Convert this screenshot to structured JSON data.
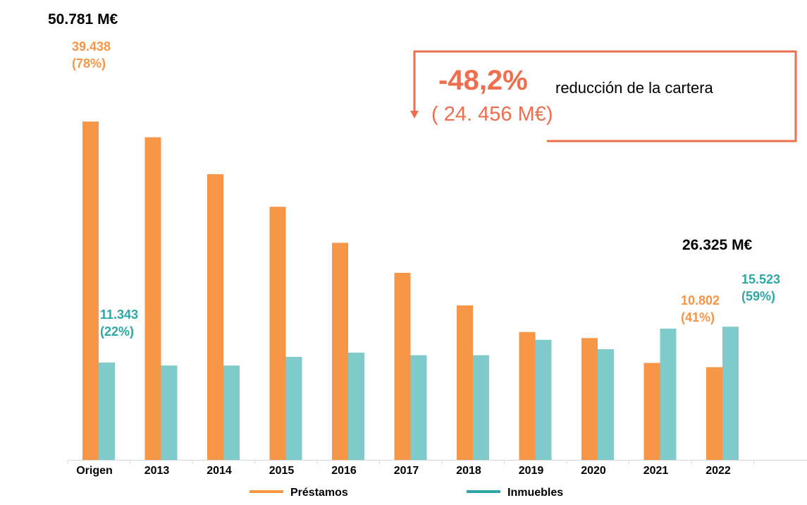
{
  "chart_data": {
    "type": "bar",
    "categories": [
      "Origen",
      "2013",
      "2014",
      "2015",
      "2016",
      "2017",
      "2018",
      "2019",
      "2020",
      "2021",
      "2022"
    ],
    "series": [
      {
        "name": "Préstamos",
        "color": "#f79646",
        "values": [
          39438,
          37600,
          33300,
          29500,
          25300,
          21800,
          18000,
          14900,
          14200,
          11300,
          10802
        ]
      },
      {
        "name": "Inmuebles",
        "color": "#7fcbcb",
        "values": [
          11343,
          11000,
          11000,
          12000,
          12500,
          12200,
          12200,
          14000,
          12900,
          15300,
          15523
        ]
      }
    ],
    "ylim": [
      0,
      49000
    ],
    "grid": false,
    "legend_position": "bottom",
    "annotations": {
      "origin_total": "50.781 M€",
      "origin_prestamos_value": "39.438",
      "origin_prestamos_pct": "(78%)",
      "origin_inmuebles_value": "11.343",
      "origin_inmuebles_pct": "(22%)",
      "final_total": "26.325 M€",
      "final_prestamos_value": "10.802",
      "final_prestamos_pct": "(41%)",
      "final_inmuebles_value": "15.523",
      "final_inmuebles_pct": "(59%)"
    },
    "callout": {
      "percent": "-48,2%",
      "text": "reducción de la cartera",
      "amount": "( 24. 456 M€)",
      "color": "#ee6e4e"
    }
  }
}
